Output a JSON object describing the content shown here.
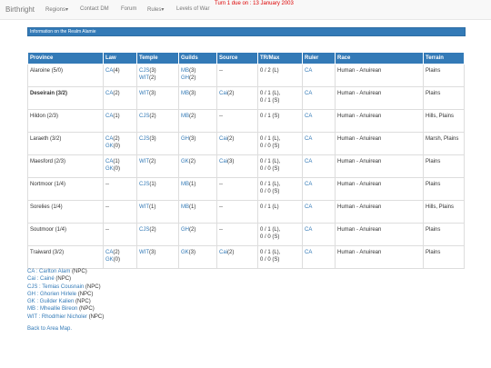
{
  "nav": {
    "brand": "Birthright",
    "items": [
      "Regions▾",
      "Contact DM",
      "Forum",
      "Rules▾",
      "Levels of War"
    ],
    "notice": "Turn 1 due on : 13 January 2003"
  },
  "panel": {
    "title": "Information on the Realm Alamie"
  },
  "table": {
    "headers": [
      "Province",
      "Law",
      "Temple",
      "Guilds",
      "Source",
      "TR/Max",
      "Ruler",
      "Race",
      "Terrain"
    ],
    "rows": [
      {
        "cells": [
          [
            "Alaroine (5/0)"
          ],
          [
            {
              "link": "CA",
              "text": "(4)"
            }
          ],
          [
            {
              "link": "CJS",
              "text": "(3)"
            },
            {
              "link": "WIT",
              "text": "(2)"
            }
          ],
          [
            {
              "link": "MB",
              "text": "(3)"
            },
            {
              "link": "GH",
              "text": "(2)"
            }
          ],
          [
            "--"
          ],
          [
            "0 / 2 (L)"
          ],
          [
            {
              "link": "CA"
            }
          ],
          [
            "Human - Anuirean"
          ],
          [
            "Plains"
          ]
        ]
      },
      {
        "bold": true,
        "cells": [
          [
            "Deseirain (3/2)"
          ],
          [
            {
              "link": "CA",
              "text": "(2)"
            }
          ],
          [
            {
              "link": "WIT",
              "text": "(3)"
            }
          ],
          [
            {
              "link": "MB",
              "text": "(3)"
            }
          ],
          [
            {
              "link": "Cai",
              "text": "(2)"
            }
          ],
          [
            "0 / 1 (L),",
            "0 / 1 (S)"
          ],
          [
            {
              "link": "CA"
            }
          ],
          [
            "Human - Anuirean"
          ],
          [
            "Plains"
          ]
        ]
      },
      {
        "cells": [
          [
            "Hildon (2/3)"
          ],
          [
            {
              "link": "CA",
              "text": "(1)"
            }
          ],
          [
            {
              "link": "CJS",
              "text": "(2)"
            }
          ],
          [
            {
              "link": "MB",
              "text": "(2)"
            }
          ],
          [
            "--"
          ],
          [
            "0 / 1 (S)"
          ],
          [
            {
              "link": "CA"
            }
          ],
          [
            "Human - Anuirean"
          ],
          [
            "Hills, Plains"
          ]
        ]
      },
      {
        "cells": [
          [
            "Laraeth (3/2)"
          ],
          [
            {
              "link": "CA",
              "text": "(2)"
            },
            {
              "link": "GK",
              "text": "(0)"
            }
          ],
          [
            {
              "link": "CJS",
              "text": "(3)"
            }
          ],
          [
            {
              "link": "GH",
              "text": "(3)"
            }
          ],
          [
            {
              "link": "Cai",
              "text": "(2)"
            }
          ],
          [
            "0 / 1 (L),",
            "0 / 0 (S)"
          ],
          [
            {
              "link": "CA"
            }
          ],
          [
            "Human - Anuirean"
          ],
          [
            "Marsh, Plains"
          ]
        ]
      },
      {
        "cells": [
          [
            "Maesford (2/3)"
          ],
          [
            {
              "link": "CA",
              "text": "(1)"
            },
            {
              "link": "GK",
              "text": "(0)"
            }
          ],
          [
            {
              "link": "WIT",
              "text": "(2)"
            }
          ],
          [
            {
              "link": "GK",
              "text": "(2)"
            }
          ],
          [
            {
              "link": "Cai",
              "text": "(3)"
            }
          ],
          [
            "0 / 1 (L),",
            "0 / 0 (S)"
          ],
          [
            {
              "link": "CA"
            }
          ],
          [
            "Human - Anuirean"
          ],
          [
            "Plains"
          ]
        ]
      },
      {
        "cells": [
          [
            "Nortmoor (1/4)"
          ],
          [
            "--"
          ],
          [
            {
              "link": "CJS",
              "text": "(1)"
            }
          ],
          [
            {
              "link": "MB",
              "text": "(1)"
            }
          ],
          [
            "--"
          ],
          [
            "0 / 1 (L),",
            "0 / 0 (S)"
          ],
          [
            {
              "link": "CA"
            }
          ],
          [
            "Human - Anuirean"
          ],
          [
            "Plains"
          ]
        ]
      },
      {
        "cells": [
          [
            "Sorelies (1/4)"
          ],
          [
            "--"
          ],
          [
            {
              "link": "WIT",
              "text": "(1)"
            }
          ],
          [
            {
              "link": "MB",
              "text": "(1)"
            }
          ],
          [
            "--"
          ],
          [
            "0 / 1 (L)"
          ],
          [
            {
              "link": "CA"
            }
          ],
          [
            "Human - Anuirean"
          ],
          [
            "Hills, Plains"
          ]
        ]
      },
      {
        "cells": [
          [
            "Soutmoor (1/4)"
          ],
          [
            "--"
          ],
          [
            {
              "link": "CJS",
              "text": "(2)"
            }
          ],
          [
            {
              "link": "GH",
              "text": "(2)"
            }
          ],
          [
            "--"
          ],
          [
            "0 / 1 (L),",
            "0 / 0 (S)"
          ],
          [
            {
              "link": "CA"
            }
          ],
          [
            "Human - Anuirean"
          ],
          [
            "Plains"
          ]
        ]
      },
      {
        "cells": [
          [
            "Traiward (3/2)"
          ],
          [
            {
              "link": "CA",
              "text": "(2)"
            },
            {
              "link": "GK",
              "text": "(0)"
            }
          ],
          [
            {
              "link": "WIT",
              "text": "(3)"
            }
          ],
          [
            {
              "link": "GK",
              "text": "(3)"
            }
          ],
          [
            {
              "link": "Cai",
              "text": "(2)"
            }
          ],
          [
            "0 / 1 (L),",
            "0 / 0 (S)"
          ],
          [
            {
              "link": "CA"
            }
          ],
          [
            "Human - Anuirean"
          ],
          [
            "Plains"
          ]
        ]
      }
    ]
  },
  "legend": [
    {
      "link": "CA : Carlton Alam",
      "text": "(NPC)"
    },
    {
      "link": "Cai : Cainé",
      "text": "(NPC)"
    },
    {
      "link": "CJS : Temias Cousnain",
      "text": "(NPC)"
    },
    {
      "link": "GH : Ghorien Hirlele",
      "text": "(NPC)"
    },
    {
      "link": "GK : Guilder Kalien",
      "text": "(NPC)"
    },
    {
      "link": "MB : Mheallie Bireon",
      "text": "(NPC)"
    },
    {
      "link": "WIT : Rhodrhier Nicholer",
      "text": "(NPC)"
    }
  ],
  "back": "Back to Area Map."
}
